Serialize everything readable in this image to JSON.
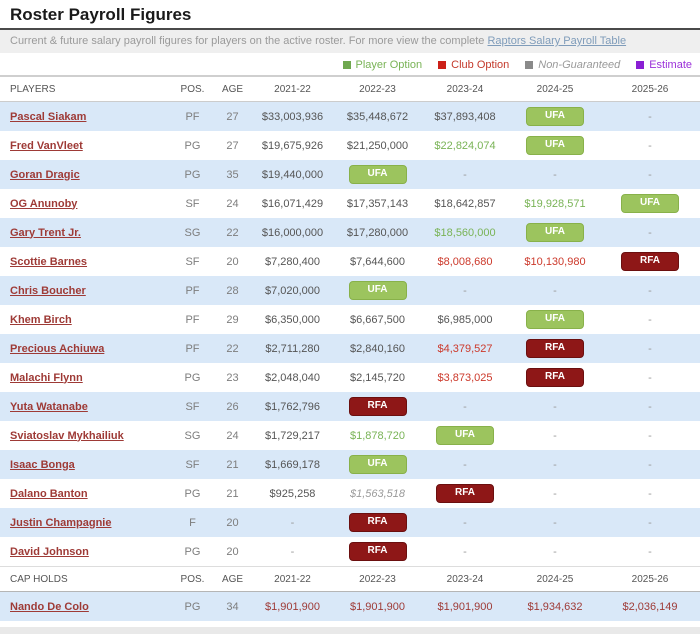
{
  "header": {
    "title": "Roster Payroll Figures",
    "description": "Current & future salary payroll figures for players on the active roster. For more view the complete ",
    "link_text": "Raptors Salary Payroll Table",
    "link_color": "#7f9cba"
  },
  "legend": {
    "items": [
      {
        "label": "Player Option",
        "color": "#6fa84f",
        "text_color": "#79b356",
        "italic": false
      },
      {
        "label": "Club Option",
        "color": "#cc2018",
        "text_color": "#c4392b",
        "italic": false
      },
      {
        "label": "Non-Guaranteed",
        "color": "#8a8a8a",
        "text_color": "#999999",
        "italic": true
      },
      {
        "label": "Estimate",
        "color": "#8a1fd4",
        "text_color": "#9b30d9",
        "italic": false
      }
    ]
  },
  "status_colors": {
    "salary": "#555555",
    "po": "#79b356",
    "co": "#cc392b",
    "ng": "#9a9a9a",
    "dash": "#999999",
    "cap": "#9e3a36",
    "player_link": "#9e3a36",
    "ufa_badge_bg": "#9cc45e",
    "ufa_badge_border": "#88b14a",
    "rfa_badge_bg": "#8e1717",
    "rfa_badge_border": "#6b0f0f"
  },
  "table": {
    "columns": [
      "PLAYERS",
      "POS.",
      "AGE",
      "2021-22",
      "2022-23",
      "2023-24",
      "2024-25",
      "2025-26"
    ],
    "rows": [
      {
        "name": "Pascal Siakam",
        "pos": "PF",
        "age": "27",
        "years": [
          {
            "t": "$33,003,936",
            "k": "salary"
          },
          {
            "t": "$35,448,672",
            "k": "salary"
          },
          {
            "t": "$37,893,408",
            "k": "salary"
          },
          {
            "t": "UFA",
            "k": "ufa"
          },
          {
            "t": "-",
            "k": "dash"
          }
        ]
      },
      {
        "name": "Fred VanVleet",
        "pos": "PG",
        "age": "27",
        "years": [
          {
            "t": "$19,675,926",
            "k": "salary"
          },
          {
            "t": "$21,250,000",
            "k": "salary"
          },
          {
            "t": "$22,824,074",
            "k": "po"
          },
          {
            "t": "UFA",
            "k": "ufa"
          },
          {
            "t": "-",
            "k": "dash"
          }
        ]
      },
      {
        "name": "Goran Dragic",
        "pos": "PG",
        "age": "35",
        "years": [
          {
            "t": "$19,440,000",
            "k": "salary"
          },
          {
            "t": "UFA",
            "k": "ufa"
          },
          {
            "t": "-",
            "k": "dash"
          },
          {
            "t": "-",
            "k": "dash"
          },
          {
            "t": "-",
            "k": "dash"
          }
        ]
      },
      {
        "name": "OG Anunoby",
        "pos": "SF",
        "age": "24",
        "years": [
          {
            "t": "$16,071,429",
            "k": "salary"
          },
          {
            "t": "$17,357,143",
            "k": "salary"
          },
          {
            "t": "$18,642,857",
            "k": "salary"
          },
          {
            "t": "$19,928,571",
            "k": "po"
          },
          {
            "t": "UFA",
            "k": "ufa"
          }
        ]
      },
      {
        "name": "Gary Trent Jr.",
        "pos": "SG",
        "age": "22",
        "years": [
          {
            "t": "$16,000,000",
            "k": "salary"
          },
          {
            "t": "$17,280,000",
            "k": "salary"
          },
          {
            "t": "$18,560,000",
            "k": "po"
          },
          {
            "t": "UFA",
            "k": "ufa"
          },
          {
            "t": "-",
            "k": "dash"
          }
        ]
      },
      {
        "name": "Scottie Barnes",
        "pos": "SF",
        "age": "20",
        "years": [
          {
            "t": "$7,280,400",
            "k": "salary"
          },
          {
            "t": "$7,644,600",
            "k": "salary"
          },
          {
            "t": "$8,008,680",
            "k": "co"
          },
          {
            "t": "$10,130,980",
            "k": "co"
          },
          {
            "t": "RFA",
            "k": "rfa"
          }
        ]
      },
      {
        "name": "Chris Boucher",
        "pos": "PF",
        "age": "28",
        "years": [
          {
            "t": "$7,020,000",
            "k": "salary"
          },
          {
            "t": "UFA",
            "k": "ufa"
          },
          {
            "t": "-",
            "k": "dash"
          },
          {
            "t": "-",
            "k": "dash"
          },
          {
            "t": "-",
            "k": "dash"
          }
        ]
      },
      {
        "name": "Khem Birch",
        "pos": "PF",
        "age": "29",
        "years": [
          {
            "t": "$6,350,000",
            "k": "salary"
          },
          {
            "t": "$6,667,500",
            "k": "salary"
          },
          {
            "t": "$6,985,000",
            "k": "salary"
          },
          {
            "t": "UFA",
            "k": "ufa"
          },
          {
            "t": "-",
            "k": "dash"
          }
        ]
      },
      {
        "name": "Precious Achiuwa",
        "pos": "PF",
        "age": "22",
        "years": [
          {
            "t": "$2,711,280",
            "k": "salary"
          },
          {
            "t": "$2,840,160",
            "k": "salary"
          },
          {
            "t": "$4,379,527",
            "k": "co"
          },
          {
            "t": "RFA",
            "k": "rfa"
          },
          {
            "t": "-",
            "k": "dash"
          }
        ]
      },
      {
        "name": "Malachi Flynn",
        "pos": "PG",
        "age": "23",
        "years": [
          {
            "t": "$2,048,040",
            "k": "salary"
          },
          {
            "t": "$2,145,720",
            "k": "salary"
          },
          {
            "t": "$3,873,025",
            "k": "co"
          },
          {
            "t": "RFA",
            "k": "rfa"
          },
          {
            "t": "-",
            "k": "dash"
          }
        ]
      },
      {
        "name": "Yuta Watanabe",
        "pos": "SF",
        "age": "26",
        "years": [
          {
            "t": "$1,762,796",
            "k": "salary"
          },
          {
            "t": "RFA",
            "k": "rfa"
          },
          {
            "t": "-",
            "k": "dash"
          },
          {
            "t": "-",
            "k": "dash"
          },
          {
            "t": "-",
            "k": "dash"
          }
        ]
      },
      {
        "name": "Sviatoslav Mykhailiuk",
        "pos": "SG",
        "age": "24",
        "years": [
          {
            "t": "$1,729,217",
            "k": "salary"
          },
          {
            "t": "$1,878,720",
            "k": "po"
          },
          {
            "t": "UFA",
            "k": "ufa"
          },
          {
            "t": "-",
            "k": "dash"
          },
          {
            "t": "-",
            "k": "dash"
          }
        ]
      },
      {
        "name": "Isaac Bonga",
        "pos": "SF",
        "age": "21",
        "years": [
          {
            "t": "$1,669,178",
            "k": "salary"
          },
          {
            "t": "UFA",
            "k": "ufa"
          },
          {
            "t": "-",
            "k": "dash"
          },
          {
            "t": "-",
            "k": "dash"
          },
          {
            "t": "-",
            "k": "dash"
          }
        ]
      },
      {
        "name": "Dalano Banton",
        "pos": "PG",
        "age": "21",
        "years": [
          {
            "t": "$925,258",
            "k": "salary"
          },
          {
            "t": "$1,563,518",
            "k": "ng"
          },
          {
            "t": "RFA",
            "k": "rfa"
          },
          {
            "t": "-",
            "k": "dash"
          },
          {
            "t": "-",
            "k": "dash"
          }
        ]
      },
      {
        "name": "Justin Champagnie",
        "pos": "F",
        "age": "20",
        "years": [
          {
            "t": "-",
            "k": "dash"
          },
          {
            "t": "RFA",
            "k": "rfa"
          },
          {
            "t": "-",
            "k": "dash"
          },
          {
            "t": "-",
            "k": "dash"
          },
          {
            "t": "-",
            "k": "dash"
          }
        ]
      },
      {
        "name": "David Johnson",
        "pos": "PG",
        "age": "20",
        "years": [
          {
            "t": "-",
            "k": "dash"
          },
          {
            "t": "RFA",
            "k": "rfa"
          },
          {
            "t": "-",
            "k": "dash"
          },
          {
            "t": "-",
            "k": "dash"
          },
          {
            "t": "-",
            "k": "dash"
          }
        ]
      }
    ],
    "cap_holds": {
      "columns": [
        "CAP HOLDS",
        "POS.",
        "AGE",
        "2021-22",
        "2022-23",
        "2023-24",
        "2024-25",
        "2025-26"
      ],
      "rows": [
        {
          "name": "Nando De Colo",
          "pos": "PG",
          "age": "34",
          "years": [
            {
              "t": "$1,901,900",
              "k": "cap"
            },
            {
              "t": "$1,901,900",
              "k": "cap"
            },
            {
              "t": "$1,901,900",
              "k": "cap"
            },
            {
              "t": "$1,934,632",
              "k": "cap"
            },
            {
              "t": "$2,036,149",
              "k": "cap"
            }
          ]
        }
      ]
    }
  }
}
